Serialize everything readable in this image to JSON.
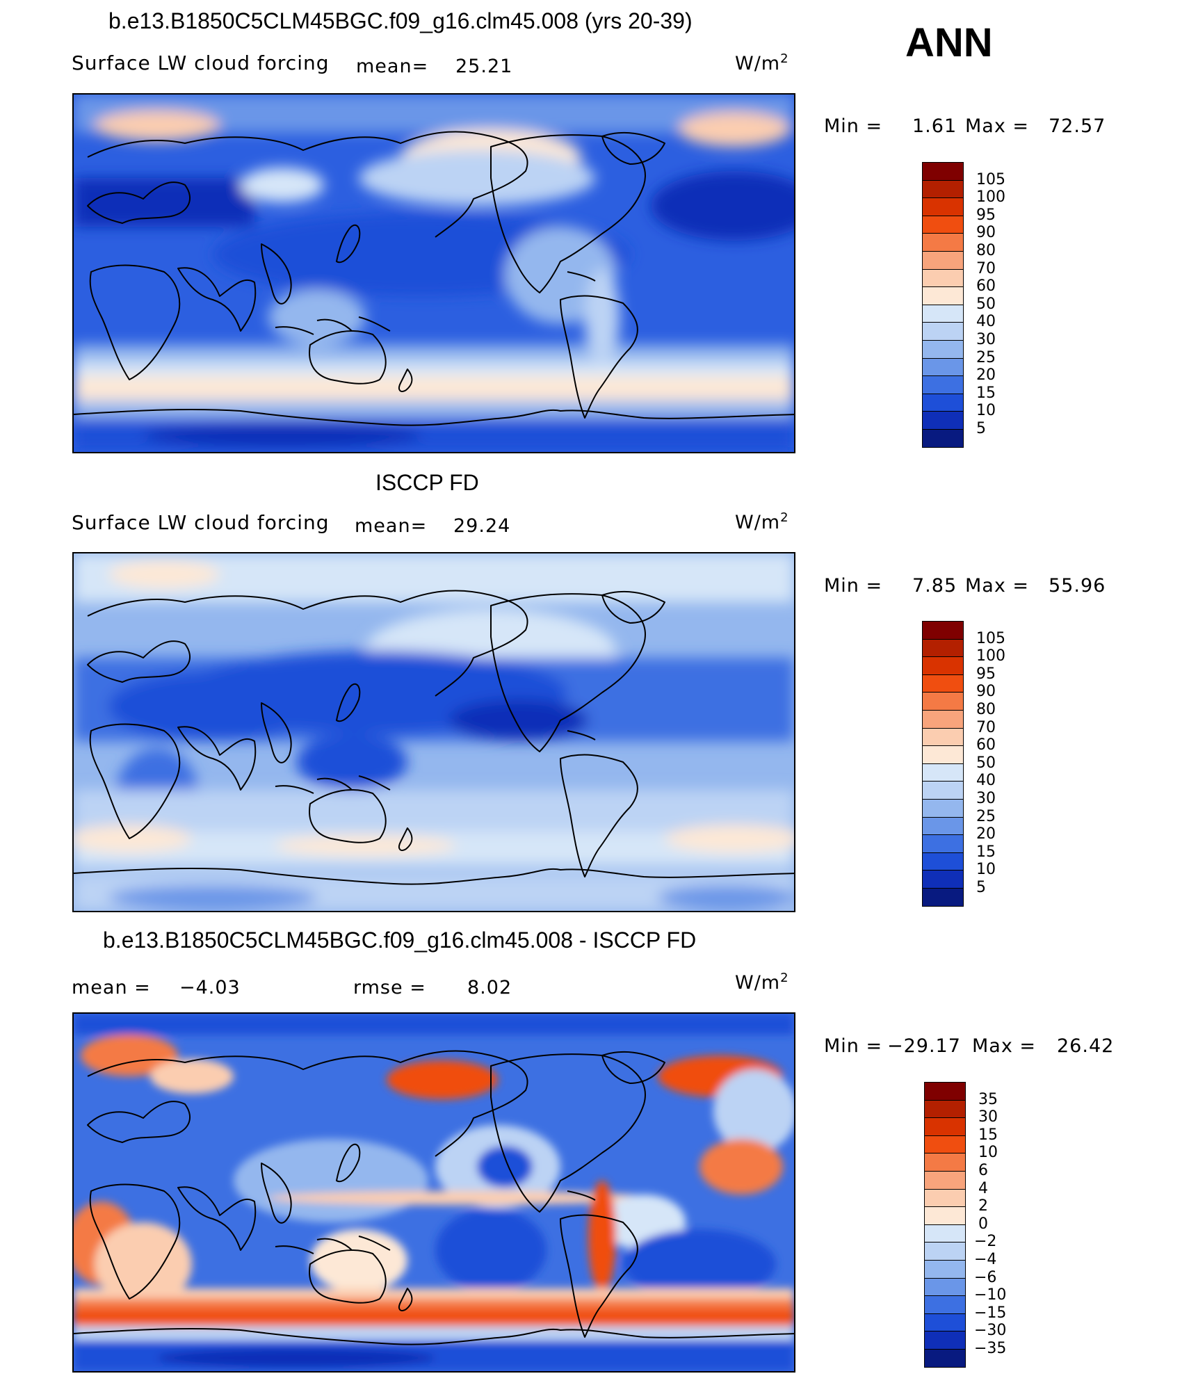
{
  "header": {
    "season": "ANN",
    "units_label": "W/m",
    "units_exp": "2"
  },
  "panels": [
    {
      "title": "b.e13.B1850C5CLM45BGC.f09_g16.clm45.008 (yrs 20-39)",
      "variable": "Surface LW cloud forcing",
      "mean_label": "mean=",
      "mean_value": "25.21",
      "min_label": "Min =",
      "min_value": "1.61",
      "max_label": "Max =",
      "max_value": "72.57",
      "colorbar": {
        "labels": [
          "105",
          "100",
          "95",
          "90",
          "80",
          "70",
          "60",
          "50",
          "40",
          "30",
          "25",
          "20",
          "15",
          "10",
          "5"
        ],
        "colors": [
          "#7f0000",
          "#b32000",
          "#d93300",
          "#f04e10",
          "#f47a45",
          "#f8a47c",
          "#fbcdb0",
          "#fde8d6",
          "#d6e6f8",
          "#bcd3f4",
          "#94b7ee",
          "#6a96e8",
          "#3d70e2",
          "#1e4fd8",
          "#0f2fb8",
          "#081a80"
        ]
      }
    },
    {
      "title": "ISCCP FD",
      "variable": "Surface LW cloud forcing",
      "mean_label": "mean=",
      "mean_value": "29.24",
      "min_label": "Min =",
      "min_value": "7.85",
      "max_label": "Max =",
      "max_value": "55.96",
      "colorbar": {
        "labels": [
          "105",
          "100",
          "95",
          "90",
          "80",
          "70",
          "60",
          "50",
          "40",
          "30",
          "25",
          "20",
          "15",
          "10",
          "5"
        ],
        "colors": [
          "#7f0000",
          "#b32000",
          "#d93300",
          "#f04e10",
          "#f47a45",
          "#f8a47c",
          "#fbcdb0",
          "#fde8d6",
          "#d6e6f8",
          "#bcd3f4",
          "#94b7ee",
          "#6a96e8",
          "#3d70e2",
          "#1e4fd8",
          "#0f2fb8",
          "#081a80"
        ]
      }
    },
    {
      "title": "b.e13.B1850C5CLM45BGC.f09_g16.clm45.008 - ISCCP FD",
      "mean_label": "mean =",
      "mean_value": "−4.03",
      "rmse_label": "rmse =",
      "rmse_value": "8.02",
      "min_label": "Min =",
      "min_value": "−29.17",
      "max_label": "Max =",
      "max_value": "26.42",
      "colorbar": {
        "labels": [
          "35",
          "30",
          "15",
          "10",
          "6",
          "4",
          "2",
          "0",
          "−2",
          "−4",
          "−6",
          "−10",
          "−15",
          "−30",
          "−35"
        ],
        "colors": [
          "#7f0000",
          "#b32000",
          "#d93300",
          "#f04e10",
          "#f47a45",
          "#f8a47c",
          "#fbcdb0",
          "#fde8d6",
          "#d6e6f8",
          "#bcd3f4",
          "#94b7ee",
          "#6a96e8",
          "#3d70e2",
          "#1e4fd8",
          "#0f2fb8",
          "#081a80"
        ]
      }
    }
  ]
}
